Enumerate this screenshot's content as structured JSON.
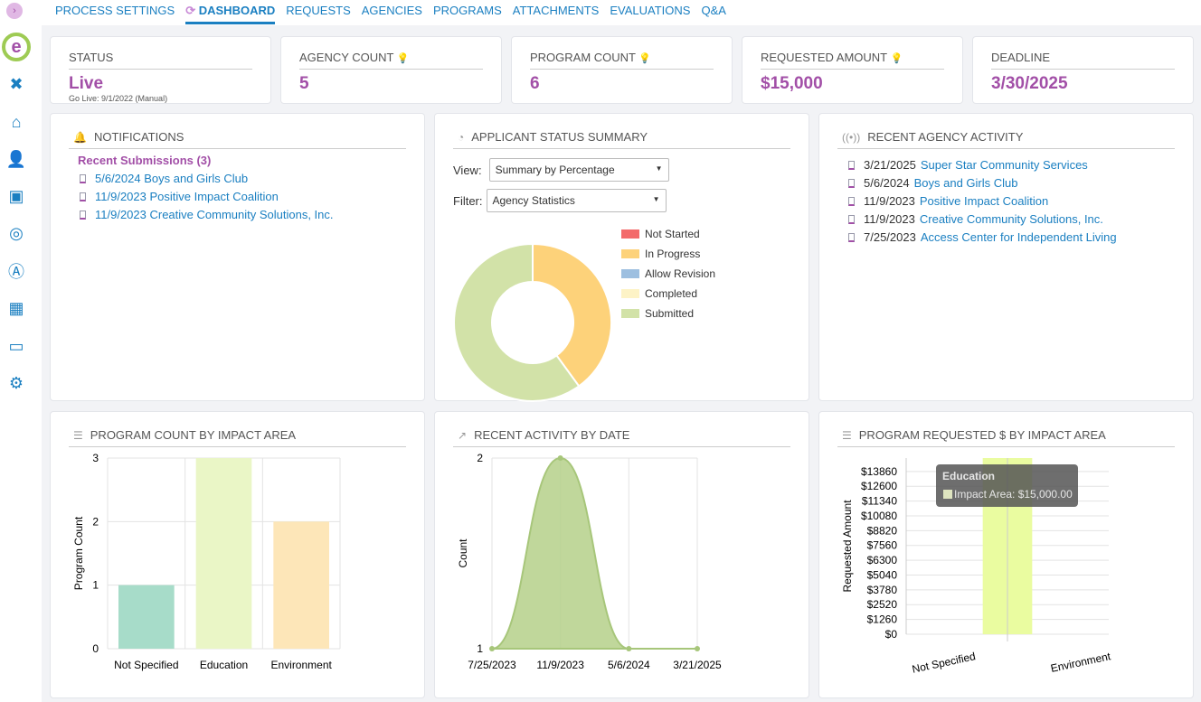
{
  "nav": {
    "tabs": [
      "PROCESS SETTINGS",
      "DASHBOARD",
      "REQUESTS",
      "AGENCIES",
      "PROGRAMS",
      "ATTACHMENTS",
      "EVALUATIONS",
      "Q&A"
    ],
    "active": "DASHBOARD"
  },
  "logo": "e",
  "stats": [
    {
      "label": "STATUS",
      "value": "Live",
      "sub": "Go Live: 9/1/2022 (Manual)"
    },
    {
      "label": "AGENCY COUNT",
      "value": "5"
    },
    {
      "label": "PROGRAM COUNT",
      "value": "6"
    },
    {
      "label": "REQUESTED AMOUNT",
      "value": "$15,000"
    },
    {
      "label": "DEADLINE",
      "value": "3/30/2025"
    }
  ],
  "notifications": {
    "title": "NOTIFICATIONS",
    "subtitle": "Recent Submissions (3)",
    "items": [
      "5/6/2024 Boys and Girls Club",
      "11/9/2023 Positive Impact Coalition",
      "11/9/2023 Creative Community Solutions, Inc."
    ]
  },
  "applicant": {
    "title": "APPLICANT STATUS SUMMARY",
    "view_label": "View:",
    "view_value": "Summary by Percentage",
    "filter_label": "Filter:",
    "filter_value": "Agency Statistics"
  },
  "activity": {
    "title": "RECENT AGENCY ACTIVITY",
    "items": [
      {
        "date": "3/21/2025",
        "name": "Super Star Community Services"
      },
      {
        "date": "5/6/2024",
        "name": "Boys and Girls Club"
      },
      {
        "date": "11/9/2023",
        "name": "Positive Impact Coalition"
      },
      {
        "date": "11/9/2023",
        "name": "Creative Community Solutions, Inc."
      },
      {
        "date": "7/25/2023",
        "name": "Access Center for Independent Living"
      }
    ]
  },
  "panels": {
    "p1": "PROGRAM COUNT BY IMPACT AREA",
    "p2": "RECENT ACTIVITY BY DATE",
    "p3": "PROGRAM REQUESTED $ BY IMPACT AREA"
  },
  "chart_data": [
    {
      "type": "pie",
      "title": "APPLICANT STATUS SUMMARY",
      "labels": [
        "Not Started",
        "In Progress",
        "Allow Revision",
        "Completed",
        "Submitted"
      ],
      "values": [
        0,
        40,
        0,
        0,
        60
      ],
      "colors": [
        "#f36a6a",
        "#fdd27a",
        "#9dbfe0",
        "#fdf3c6",
        "#d2e2a8"
      ]
    },
    {
      "type": "bar",
      "title": "PROGRAM COUNT BY IMPACT AREA",
      "categories": [
        "Not Specified",
        "Education",
        "Environment"
      ],
      "values": [
        1,
        3,
        2
      ],
      "colors": [
        "#a7dcc9",
        "#eaf6c6",
        "#fde6b8"
      ],
      "ylabel": "Program Count",
      "ylim": [
        0,
        3
      ],
      "yticks": [
        0,
        1,
        2,
        3
      ]
    },
    {
      "type": "area",
      "title": "RECENT ACTIVITY BY DATE",
      "x": [
        "7/25/2023",
        "11/9/2023",
        "5/6/2024",
        "3/21/2025"
      ],
      "values": [
        1,
        2,
        1,
        1
      ],
      "ylabel": "Count",
      "ylim": [
        1,
        2
      ],
      "yticks": [
        1,
        2
      ],
      "color": "#b5d08a"
    },
    {
      "type": "bar",
      "title": "PROGRAM REQUESTED $ BY IMPACT AREA",
      "categories": [
        "Not Specified",
        "Education",
        "Environment"
      ],
      "xtick_labels": [
        "Not Specified",
        "Environment"
      ],
      "values": [
        0,
        15000,
        0
      ],
      "ylabel": "Requested Amount",
      "ylim": [
        0,
        15000
      ],
      "yticks": [
        "$0",
        "$1260",
        "$2520",
        "$3780",
        "$5040",
        "$6300",
        "$7560",
        "$8820",
        "$10080",
        "$11340",
        "$12600",
        "$13860"
      ],
      "color": "#eafca0",
      "tooltip": {
        "title": "Education",
        "text": "Impact Area: $15,000.00"
      }
    }
  ]
}
